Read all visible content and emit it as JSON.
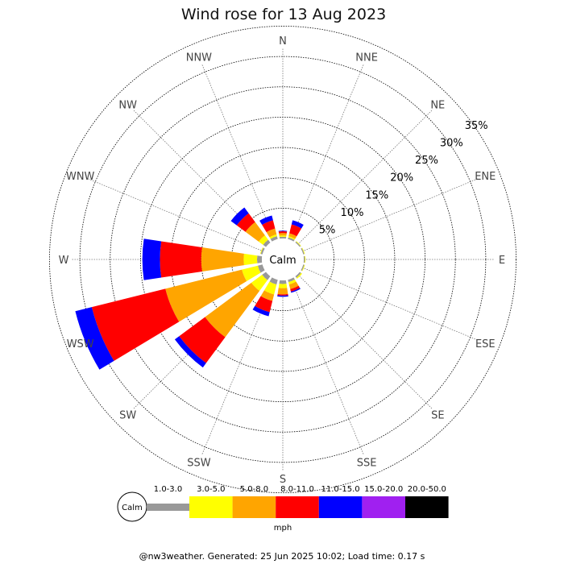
{
  "chart_data": {
    "type": "wind-rose",
    "title": "Wind rose for 13 Aug 2023",
    "directions": [
      "N",
      "NNE",
      "NE",
      "ENE",
      "E",
      "ESE",
      "SE",
      "SSE",
      "S",
      "SSW",
      "SW",
      "WSW",
      "W",
      "WNW",
      "NW",
      "NNW"
    ],
    "ring_labels": [
      "5%",
      "10%",
      "15%",
      "20%",
      "25%",
      "30%",
      "35%"
    ],
    "rings_percent": [
      5,
      10,
      15,
      20,
      25,
      30,
      35
    ],
    "calm_label": "Calm",
    "unit": "mph",
    "bins": [
      {
        "label": "1.0-3.0",
        "color": "#999999"
      },
      {
        "label": "3.0-5.0",
        "color": "#ffff00"
      },
      {
        "label": "5.0-8.0",
        "color": "#ffa500"
      },
      {
        "label": "8.0-11.0",
        "color": "#ff0000"
      },
      {
        "label": "11.0-15.0",
        "color": "#0000ff"
      },
      {
        "label": "15.0-20.0",
        "color": "#a020f0"
      },
      {
        "label": "20.0-50.0",
        "color": "#000000"
      }
    ],
    "series": [
      {
        "direction": "N",
        "cumulative_percent": [
          0.3,
          0.5,
          0.9,
          1.2,
          1.3,
          1.3,
          1.3
        ]
      },
      {
        "direction": "NNE",
        "cumulative_percent": [
          0.3,
          0.5,
          1.0,
          2.5,
          3.2,
          3.2,
          3.2
        ]
      },
      {
        "direction": "NE",
        "cumulative_percent": [
          0.2,
          0.3,
          0.3,
          0.3,
          0.3,
          0.3,
          0.3
        ]
      },
      {
        "direction": "ENE",
        "cumulative_percent": [
          0.2,
          0.3,
          0.3,
          0.3,
          0.3,
          0.3,
          0.3
        ]
      },
      {
        "direction": "E",
        "cumulative_percent": [
          0.2,
          0.3,
          0.3,
          0.3,
          0.3,
          0.3,
          0.3
        ]
      },
      {
        "direction": "ESE",
        "cumulative_percent": [
          0.2,
          0.3,
          0.3,
          0.3,
          0.3,
          0.3,
          0.3
        ]
      },
      {
        "direction": "SE",
        "cumulative_percent": [
          0.3,
          0.5,
          0.5,
          0.5,
          0.5,
          0.5,
          0.5
        ]
      },
      {
        "direction": "SSE",
        "cumulative_percent": [
          0.4,
          0.8,
          1.6,
          2.0,
          2.2,
          2.2,
          2.2
        ]
      },
      {
        "direction": "S",
        "cumulative_percent": [
          0.6,
          1.3,
          2.3,
          2.5,
          2.7,
          2.7,
          2.7
        ]
      },
      {
        "direction": "SSW",
        "cumulative_percent": [
          0.8,
          2.5,
          3.6,
          5.5,
          6.2,
          6.2,
          6.2
        ]
      },
      {
        "direction": "SW",
        "cumulative_percent": [
          0.8,
          3.0,
          12.5,
          17.8,
          18.7,
          18.7,
          18.7
        ]
      },
      {
        "direction": "WSW",
        "cumulative_percent": [
          0.8,
          3.5,
          16.5,
          29.0,
          31.8,
          31.8,
          31.8
        ]
      },
      {
        "direction": "W",
        "cumulative_percent": [
          0.8,
          3.0,
          10.0,
          16.8,
          19.7,
          19.7,
          19.7
        ]
      },
      {
        "direction": "WNW",
        "cumulative_percent": [
          0.3,
          0.4,
          0.4,
          0.4,
          0.4,
          0.4,
          0.4
        ]
      },
      {
        "direction": "NW",
        "cumulative_percent": [
          0.6,
          1.5,
          4.2,
          6.0,
          7.2,
          7.2,
          7.2
        ]
      },
      {
        "direction": "NNW",
        "cumulative_percent": [
          0.5,
          0.8,
          1.8,
          3.2,
          4.0,
          4.0,
          4.0
        ]
      }
    ]
  },
  "footer": "@nw3weather. Generated: 25 Jun 2025 10:02; Load time: 0.17 s"
}
